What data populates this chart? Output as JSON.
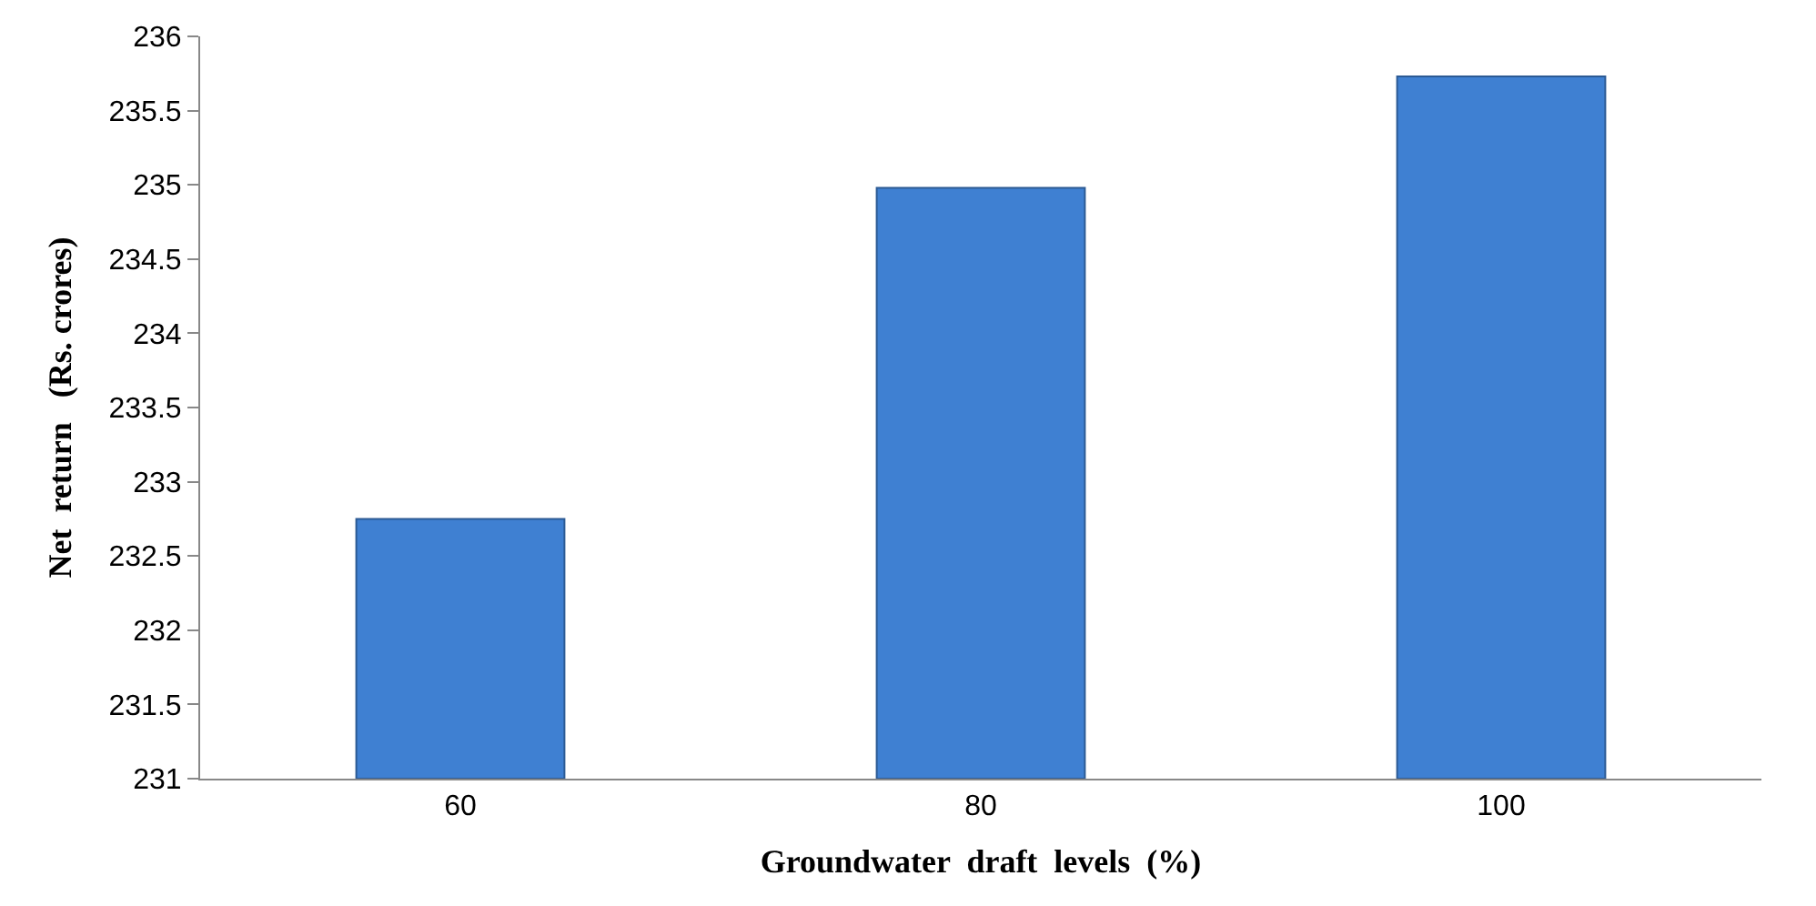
{
  "chart_data": {
    "type": "bar",
    "xlabel": "Groundwater  draft  levels  (%)",
    "ylabel": "Net  return   (Rs. crores)",
    "categories": [
      "60",
      "80",
      "100"
    ],
    "series": [
      {
        "color": "#3f80d2",
        "values": [
          232.75,
          234.98,
          235.73
        ]
      }
    ],
    "ylim": [
      231,
      236
    ],
    "yticks": [
      231,
      231.5,
      232,
      232.5,
      233,
      233.5,
      234,
      234.5,
      235,
      235.5,
      236
    ],
    "legend": false
  }
}
